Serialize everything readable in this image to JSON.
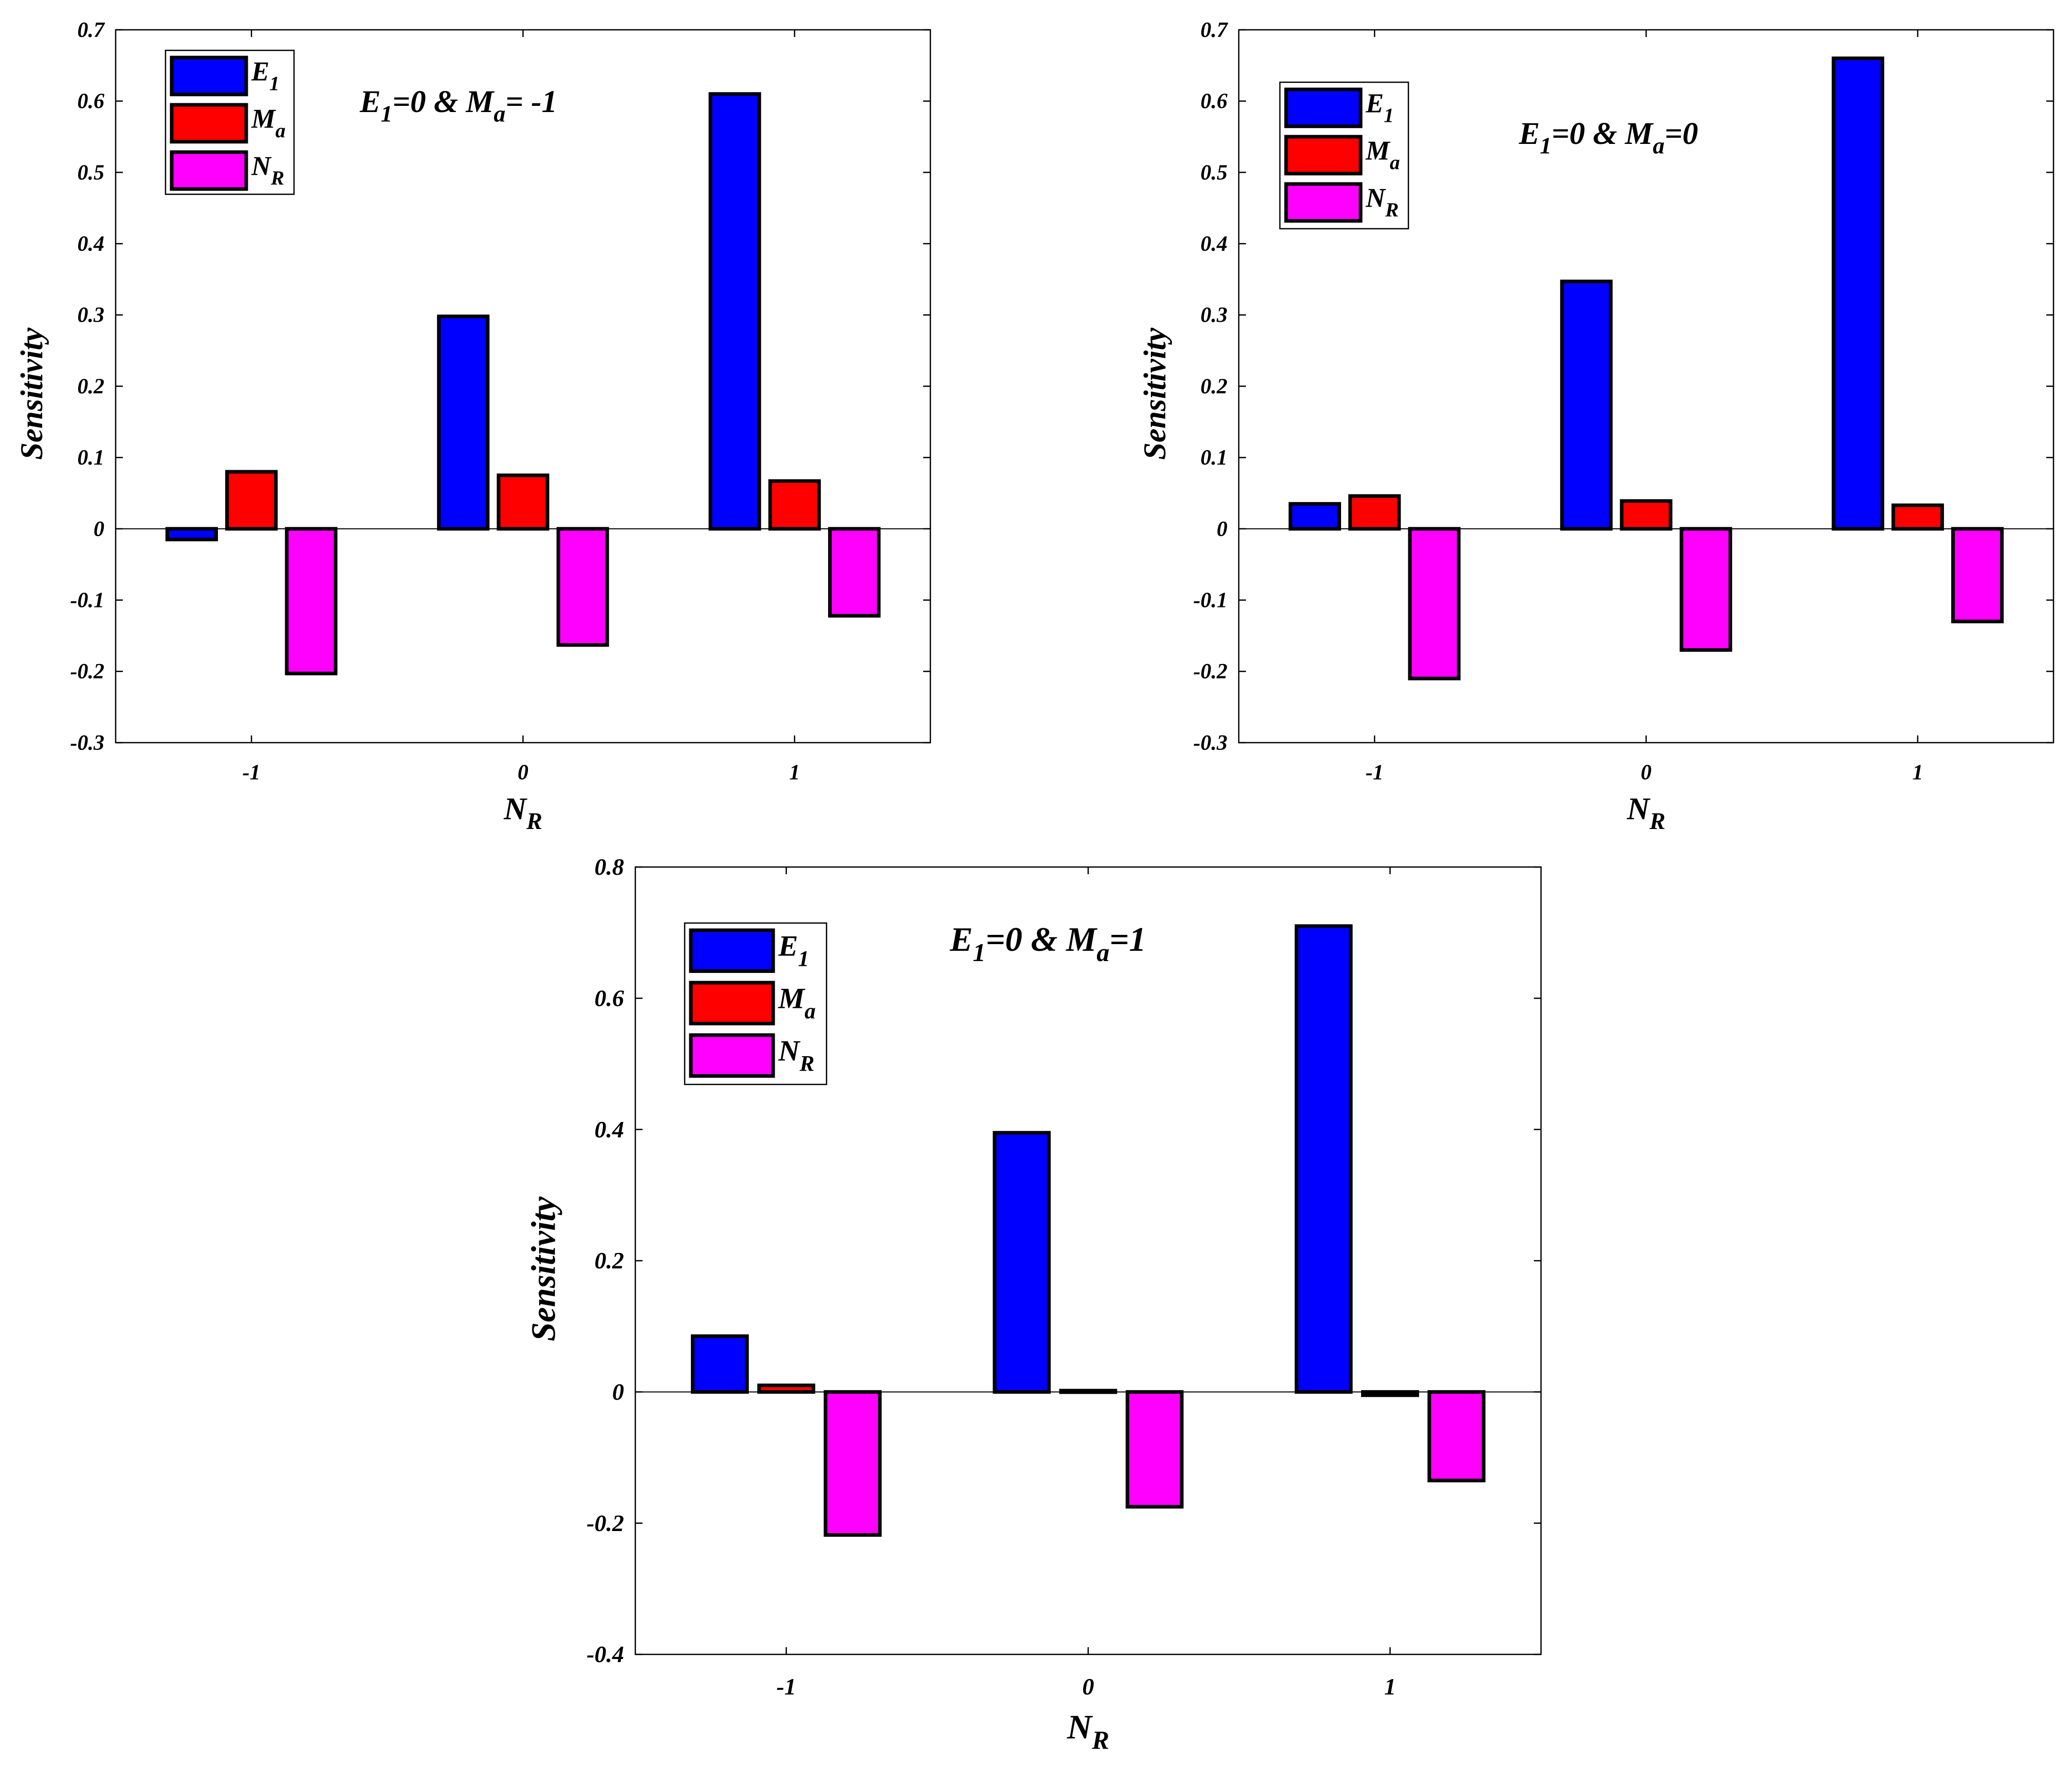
{
  "chart_data": [
    {
      "id": "top-left",
      "type": "bar",
      "title": {
        "pre": "E",
        "sub1": "1",
        "mid": "=0 & M",
        "sub2": "a",
        "post": "= -1"
      },
      "xlabel": {
        "main": "N",
        "sub": "R"
      },
      "ylabel": "Sensitivity",
      "categories": [
        "-1",
        "0",
        "1"
      ],
      "ylim": [
        -0.3,
        0.7
      ],
      "yticks": [
        -0.3,
        -0.2,
        -0.1,
        0,
        0.1,
        0.2,
        0.3,
        0.4,
        0.5,
        0.6,
        0.7
      ],
      "ytick_labels": [
        "-0.3",
        "-0.2",
        "-0.1",
        "0",
        "0.1",
        "0.2",
        "0.3",
        "0.4",
        "0.5",
        "0.6",
        "0.7"
      ],
      "series": [
        {
          "name": "E1",
          "legend_main": "E",
          "legend_sub": "1",
          "color": "#0000ff",
          "values": [
            -0.015,
            0.298,
            0.61
          ]
        },
        {
          "name": "Ma",
          "legend_main": "M",
          "legend_sub": "a",
          "color": "#ff0000",
          "values": [
            0.08,
            0.075,
            0.067
          ]
        },
        {
          "name": "NR",
          "legend_main": "N",
          "legend_sub": "R",
          "color": "#ff00ff",
          "values": [
            -0.203,
            -0.163,
            -0.122
          ]
        }
      ],
      "legend_position": "top-left"
    },
    {
      "id": "top-right",
      "type": "bar",
      "title": {
        "pre": "E",
        "sub1": "1",
        "mid": "=0 & M",
        "sub2": "a",
        "post": "=0"
      },
      "xlabel": {
        "main": "N",
        "sub": "R"
      },
      "ylabel": "Sensitivity",
      "categories": [
        "-1",
        "0",
        "1"
      ],
      "ylim": [
        -0.3,
        0.7
      ],
      "yticks": [
        -0.3,
        -0.2,
        -0.1,
        0,
        0.1,
        0.2,
        0.3,
        0.4,
        0.5,
        0.6,
        0.7
      ],
      "ytick_labels": [
        "-0.3",
        "-0.2",
        "-0.1",
        "0",
        "0.1",
        "0.2",
        "0.3",
        "0.4",
        "0.5",
        "0.6",
        "0.7"
      ],
      "series": [
        {
          "name": "E1",
          "legend_main": "E",
          "legend_sub": "1",
          "color": "#0000ff",
          "values": [
            0.035,
            0.347,
            0.66
          ]
        },
        {
          "name": "Ma",
          "legend_main": "M",
          "legend_sub": "a",
          "color": "#ff0000",
          "values": [
            0.046,
            0.039,
            0.033
          ]
        },
        {
          "name": "NR",
          "legend_main": "N",
          "legend_sub": "R",
          "color": "#ff00ff",
          "values": [
            -0.21,
            -0.17,
            -0.13
          ]
        }
      ],
      "legend_position": "top-left"
    },
    {
      "id": "bottom",
      "type": "bar",
      "title": {
        "pre": "E",
        "sub1": "1",
        "mid": "=0 & M",
        "sub2": "a",
        "post": "=1"
      },
      "xlabel": {
        "main": "N",
        "sub": "R"
      },
      "ylabel": "Sensitivity",
      "categories": [
        "-1",
        "0",
        "1"
      ],
      "ylim": [
        -0.4,
        0.8
      ],
      "yticks": [
        -0.4,
        -0.2,
        0,
        0.2,
        0.4,
        0.6,
        0.8
      ],
      "ytick_labels": [
        "-0.4",
        "-0.2",
        "0",
        "0.2",
        "0.4",
        "0.6",
        "0.8"
      ],
      "series": [
        {
          "name": "E1",
          "legend_main": "E",
          "legend_sub": "1",
          "color": "#0000ff",
          "values": [
            0.085,
            0.395,
            0.71
          ]
        },
        {
          "name": "Ma",
          "legend_main": "M",
          "legend_sub": "a",
          "color": "#ff0000",
          "values": [
            0.01,
            0.002,
            -0.005
          ]
        },
        {
          "name": "NR",
          "legend_main": "N",
          "legend_sub": "R",
          "color": "#ff00ff",
          "values": [
            -0.218,
            -0.175,
            -0.135
          ]
        }
      ],
      "legend_position": "top-left"
    }
  ]
}
